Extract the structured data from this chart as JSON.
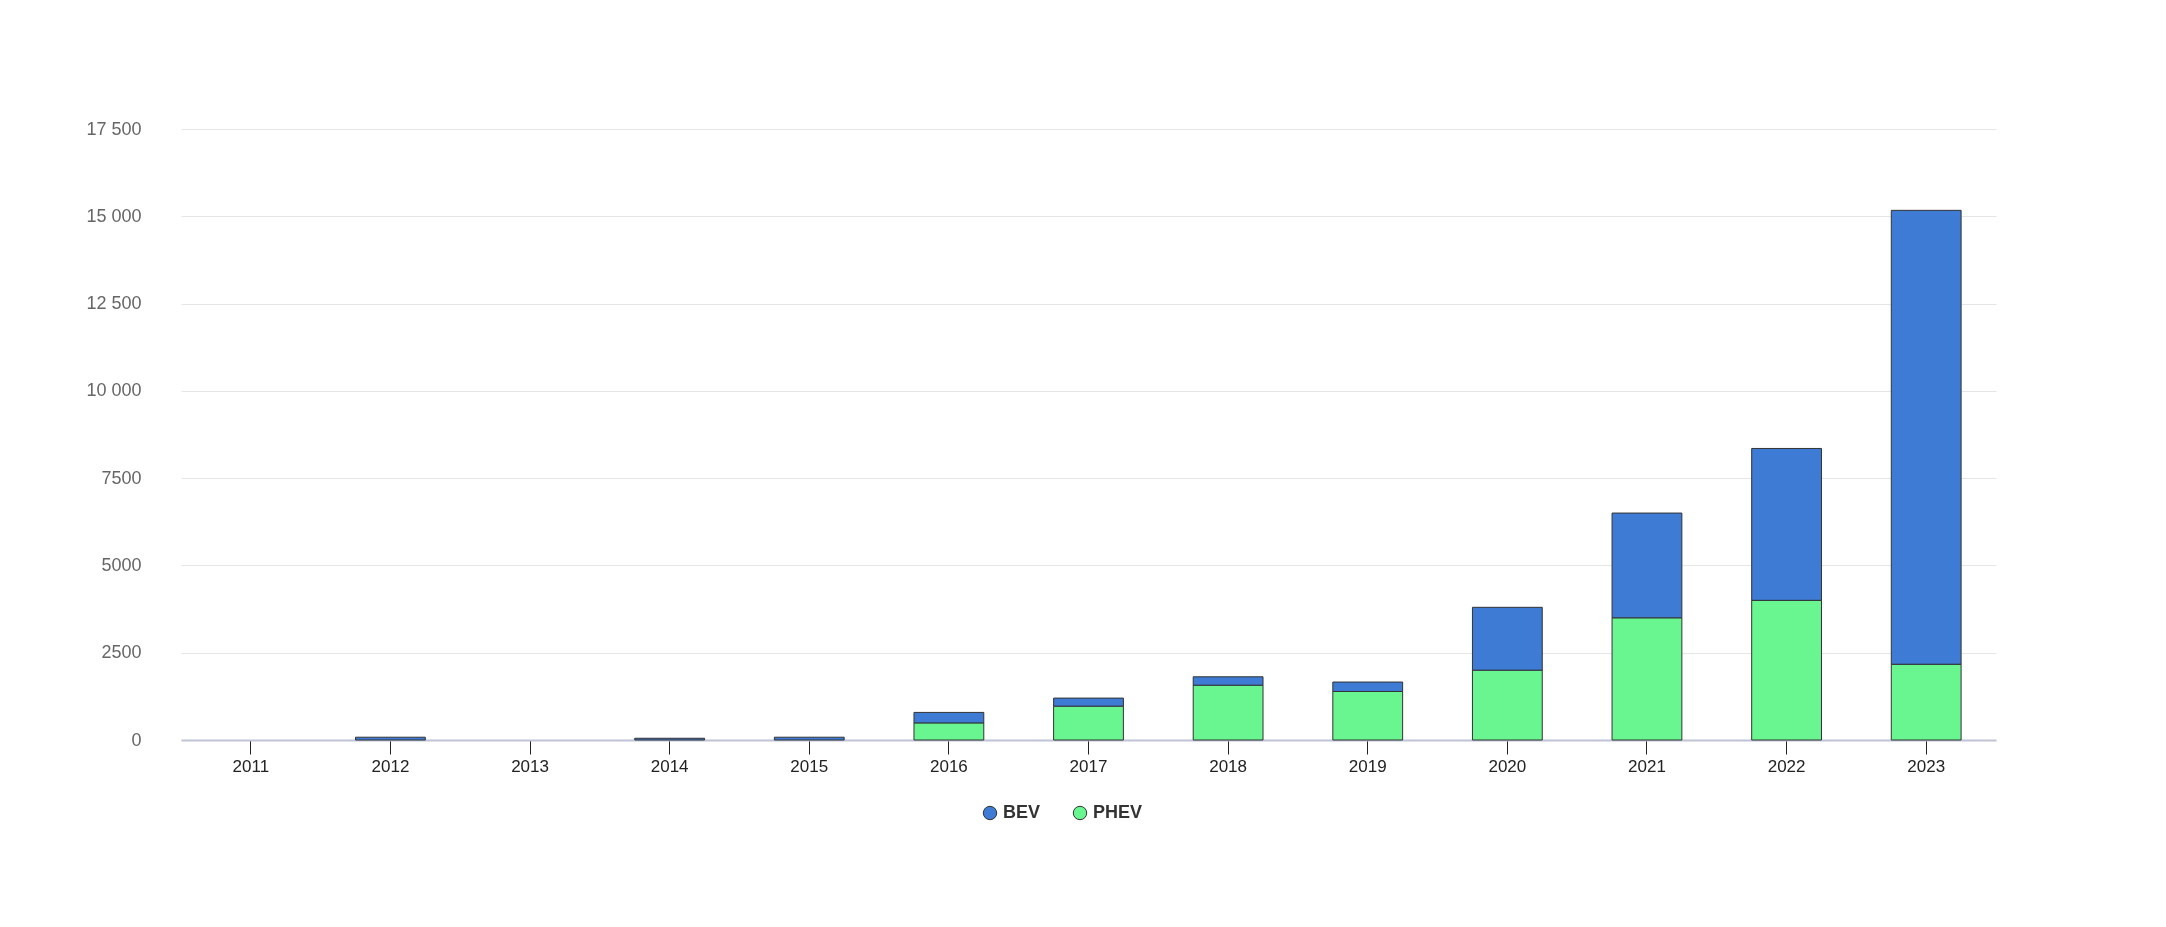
{
  "chart_data": {
    "type": "bar",
    "stacked": true,
    "categories": [
      "2011",
      "2012",
      "2013",
      "2014",
      "2015",
      "2016",
      "2017",
      "2018",
      "2019",
      "2020",
      "2021",
      "2022",
      "2023"
    ],
    "series": [
      {
        "name": "PHEV",
        "color": "#69f590",
        "values": [
          null,
          null,
          null,
          null,
          null,
          490,
          970,
          1570,
          1390,
          2000,
          3500,
          4000,
          2170
        ]
      },
      {
        "name": "BEV",
        "color": "#3d7bd4",
        "values": [
          null,
          80,
          null,
          50,
          80,
          300,
          230,
          240,
          270,
          1800,
          3000,
          4350,
          13000
        ]
      }
    ],
    "ylim": [
      0,
      17500
    ],
    "yticks": [
      0,
      2500,
      5000,
      7500,
      {
        "value": 10000,
        "label": "10 000"
      },
      {
        "value": 12500,
        "label": "12 500"
      },
      {
        "value": 15000,
        "label": "15 000"
      },
      {
        "value": 17500,
        "label": "17 500"
      }
    ],
    "grid": "y",
    "legend": "bottom"
  }
}
